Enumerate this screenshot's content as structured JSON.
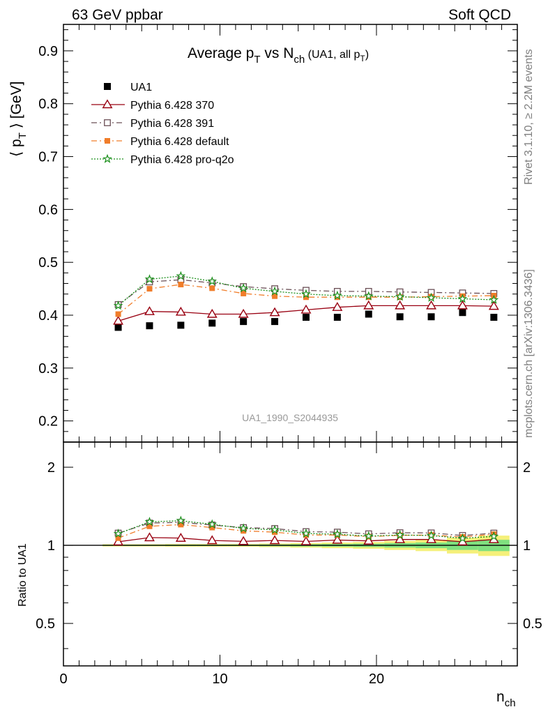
{
  "header": {
    "left": "63 GeV ppbar",
    "right": "Soft QCD"
  },
  "side_labels": {
    "rivet": "Rivet 3.1.10, ≥ 2.2M events",
    "mcplots": "mcplots.cern.ch [arXiv:1306.3436]"
  },
  "analysis_id": "UA1_1990_S2044935",
  "colors": {
    "ua1": "#000000",
    "p370": "#990011",
    "p391": "#6b4f56",
    "pdefault": "#f07d2a",
    "pq2o": "#1a8f1a",
    "band_inner": "#7fe07f",
    "band_outer": "#f5f07a"
  },
  "chart_data": [
    {
      "type": "scatter",
      "panel": "main",
      "title": "Average p_T vs N_ch (UA1, all p_T)",
      "ylabel": "⟨ p_T ⟩ [GeV]",
      "xlabel": "",
      "xlim": [
        0,
        29
      ],
      "ylim": [
        0.16,
        0.95
      ],
      "yticks": [
        0.2,
        0.3,
        0.4,
        0.5,
        0.6,
        0.7,
        0.8,
        0.9
      ],
      "ytick_labels": [
        "0.2",
        "0.3",
        "0.4",
        "0.5",
        "0.6",
        "0.7",
        "0.8",
        "0.9"
      ],
      "legend_position": "top-left",
      "x": [
        3.5,
        5.5,
        7.5,
        9.5,
        11.5,
        13.5,
        15.5,
        17.5,
        19.5,
        21.5,
        23.5,
        25.5,
        27.5
      ],
      "series": [
        {
          "name": "UA1",
          "key": "ua1",
          "marker": "square",
          "values": [
            0.377,
            0.38,
            0.381,
            0.385,
            0.388,
            0.388,
            0.396,
            0.396,
            0.402,
            0.397,
            0.397,
            0.405,
            0.396
          ]
        },
        {
          "name": "Pythia 6.428 370",
          "key": "p370",
          "marker": "triangle",
          "line": "solid",
          "values": [
            0.389,
            0.407,
            0.406,
            0.402,
            0.402,
            0.405,
            0.41,
            0.415,
            0.418,
            0.418,
            0.418,
            0.418,
            0.417
          ]
        },
        {
          "name": "Pythia 6.428 391",
          "key": "p391",
          "marker": "open-square",
          "line": "dashdot",
          "values": [
            0.42,
            0.463,
            0.467,
            0.461,
            0.454,
            0.45,
            0.447,
            0.445,
            0.445,
            0.444,
            0.443,
            0.442,
            0.441
          ]
        },
        {
          "name": "Pythia 6.428 default",
          "key": "pdefault",
          "marker": "filled-square",
          "line": "dashdot",
          "values": [
            0.402,
            0.45,
            0.458,
            0.451,
            0.441,
            0.436,
            0.434,
            0.434,
            0.434,
            0.434,
            0.435,
            0.436,
            0.437
          ]
        },
        {
          "name": "Pythia 6.428 pro-q2o",
          "key": "pq2o",
          "marker": "star",
          "line": "dotted",
          "values": [
            0.418,
            0.468,
            0.474,
            0.464,
            0.451,
            0.445,
            0.44,
            0.437,
            0.436,
            0.435,
            0.433,
            0.431,
            0.429
          ]
        }
      ]
    },
    {
      "type": "scatter",
      "panel": "ratio",
      "ylabel": "Ratio to UA1",
      "xlabel": "n_ch",
      "xlim": [
        0,
        29
      ],
      "ylim": [
        0.343,
        2.5
      ],
      "log_y": true,
      "yticks": [
        0.5,
        1,
        2
      ],
      "ytick_labels": [
        "0.5",
        "1",
        "2"
      ],
      "xticks": [
        0,
        10,
        20
      ],
      "xtick_labels": [
        "0",
        "10",
        "20"
      ],
      "x": [
        3.5,
        5.5,
        7.5,
        9.5,
        11.5,
        13.5,
        15.5,
        17.5,
        19.5,
        21.5,
        23.5,
        25.5,
        27.5
      ],
      "band_inner": [
        0.005,
        0.005,
        0.006,
        0.006,
        0.006,
        0.008,
        0.01,
        0.012,
        0.015,
        0.02,
        0.025,
        0.04,
        0.05
      ],
      "band_outer": [
        0.01,
        0.01,
        0.012,
        0.012,
        0.012,
        0.016,
        0.02,
        0.025,
        0.03,
        0.04,
        0.05,
        0.07,
        0.09
      ],
      "series": [
        {
          "name": "Pythia 6.428 370",
          "key": "p370",
          "marker": "triangle",
          "line": "solid",
          "values": [
            1.032,
            1.071,
            1.066,
            1.044,
            1.036,
            1.044,
            1.035,
            1.048,
            1.04,
            1.053,
            1.053,
            1.032,
            1.053
          ]
        },
        {
          "name": "Pythia 6.428 391",
          "key": "p391",
          "marker": "open-square",
          "line": "dashdot",
          "values": [
            1.114,
            1.218,
            1.226,
            1.197,
            1.17,
            1.16,
            1.129,
            1.124,
            1.107,
            1.118,
            1.116,
            1.091,
            1.114
          ]
        },
        {
          "name": "Pythia 6.428 default",
          "key": "pdefault",
          "marker": "filled-square",
          "line": "dashdot",
          "values": [
            1.066,
            1.184,
            1.202,
            1.171,
            1.137,
            1.124,
            1.096,
            1.096,
            1.08,
            1.093,
            1.096,
            1.077,
            1.104
          ]
        },
        {
          "name": "Pythia 6.428 pro-q2o",
          "key": "pq2o",
          "marker": "star",
          "line": "dotted",
          "values": [
            1.109,
            1.232,
            1.244,
            1.205,
            1.162,
            1.147,
            1.111,
            1.104,
            1.085,
            1.096,
            1.091,
            1.064,
            1.083
          ]
        }
      ]
    }
  ]
}
